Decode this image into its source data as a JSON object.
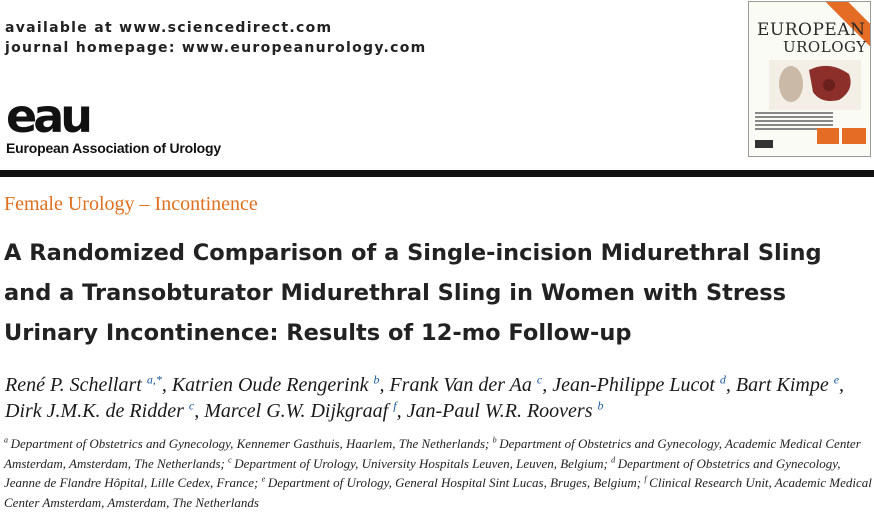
{
  "header": {
    "available_at": "available at www.sciencedirect.com",
    "journal_homepage": "journal homepage: www.europeanurology.com",
    "eau_logo_text": "eau",
    "eau_full_name": "European Association of Urology",
    "cover": {
      "title_line1": "EUROPEAN",
      "title_line2": "UROLOGY",
      "accent_color": "#e46c25"
    }
  },
  "section": {
    "label": "Female Urology – Incontinence",
    "color": "#e0701f"
  },
  "article": {
    "title": "A Randomized Comparison of a Single-incision Midurethral Sling and a Transobturator Midurethral Sling in Women with Stress Urinary Incontinence: Results of 12-mo Follow-up"
  },
  "authors": [
    {
      "name": "René P. Schellart",
      "sup": "a,*",
      "sep": ", "
    },
    {
      "name": "Katrien Oude Rengerink",
      "sup": "b",
      "sep": ", "
    },
    {
      "name": "Frank Van der Aa",
      "sup": "c",
      "sep": ", "
    },
    {
      "name": "Jean-Philippe Lucot",
      "sup": "d",
      "sep": ", "
    },
    {
      "name": "Bart Kimpe",
      "sup": "e",
      "sep": ", "
    },
    {
      "name": "Dirk J.M.K. de Ridder",
      "sup": "c",
      "sep": ", "
    },
    {
      "name": "Marcel G.W. Dijkgraaf",
      "sup": "f",
      "sep": ", "
    },
    {
      "name": "Jan-Paul W.R. Roovers",
      "sup": "b",
      "sep": ""
    }
  ],
  "affiliations": [
    {
      "sup": "a",
      "text": "Department of Obstetrics and Gynecology, Kennemer Gasthuis, Haarlem, The Netherlands; "
    },
    {
      "sup": "b",
      "text": "Department of Obstetrics and Gynecology, Academic Medical Center Amsterdam, Amsterdam, The Netherlands; "
    },
    {
      "sup": "c",
      "text": "Department of Urology, University Hospitals Leuven, Leuven, Belgium; "
    },
    {
      "sup": "d",
      "text": "Department of Obstetrics and Gynecology, Jeanne de Flandre Hôpital, Lille Cedex, France; "
    },
    {
      "sup": "e",
      "text": "Department of Urology, General Hospital Sint Lucas, Bruges, Belgium; "
    },
    {
      "sup": "f",
      "text": "Clinical Research Unit, Academic Medical Center Amsterdam, Amsterdam, The Netherlands"
    }
  ]
}
